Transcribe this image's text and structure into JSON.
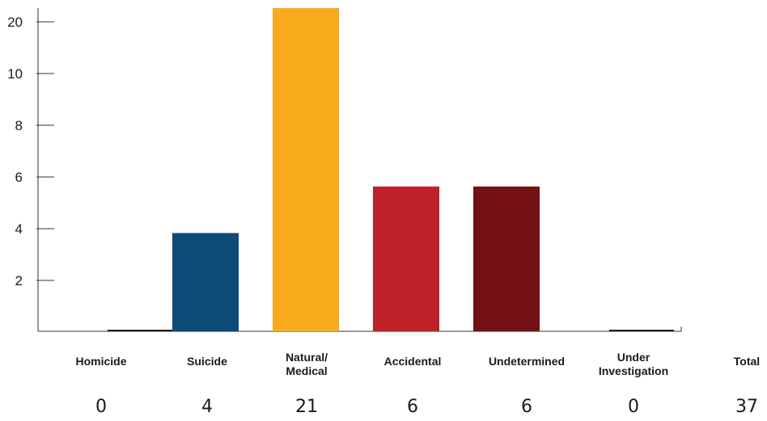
{
  "chart_data": {
    "type": "bar",
    "categories": [
      [
        "Homicide"
      ],
      [
        "Suicide"
      ],
      [
        "Natural/",
        "Medical"
      ],
      [
        "Accidental"
      ],
      [
        "Undetermined"
      ],
      [
        "Under",
        "Investigation"
      ],
      [
        "Total"
      ]
    ],
    "values": [
      0,
      4,
      21,
      6,
      6,
      0,
      37
    ],
    "value_labels": [
      "0",
      "4",
      "21",
      "6",
      "6",
      "0",
      "37"
    ],
    "bar_colors": [
      "#0d4a78",
      "#0d4a78",
      "#f8aa1c",
      "#bd2127",
      "#731114",
      "#731114",
      null
    ],
    "bar_heights": [
      0,
      3.8,
      22.4,
      5.6,
      5.6,
      0
    ],
    "y_ticks": [
      2,
      4,
      6,
      8,
      10,
      20
    ],
    "y_tick_labels": [
      "2",
      "4",
      "6",
      "8",
      "10",
      "20"
    ],
    "grid": false,
    "legend": "none",
    "title": "",
    "xlabel": "",
    "ylabel": ""
  }
}
